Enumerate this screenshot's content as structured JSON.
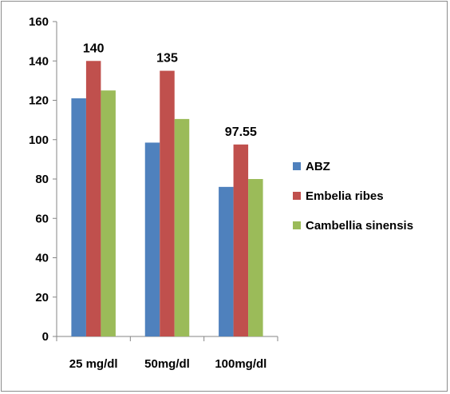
{
  "chart_data": {
    "type": "bar",
    "categories": [
      "25 mg/dl",
      "50mg/dl",
      "100mg/dl"
    ],
    "series": [
      {
        "name": "ABZ",
        "values": [
          121,
          98.5,
          76
        ],
        "color": "#4f81bd"
      },
      {
        "name": "Embelia ribes",
        "values": [
          140,
          135,
          97.55
        ],
        "color": "#c0504d"
      },
      {
        "name": "Cambellia sinensis",
        "values": [
          125,
          110.5,
          80
        ],
        "color": "#9bbb59"
      }
    ],
    "data_labels": [
      {
        "category": 0,
        "series": 1,
        "text": "140"
      },
      {
        "category": 1,
        "series": 1,
        "text": "135"
      },
      {
        "category": 2,
        "series": 1,
        "text": "97.55"
      }
    ],
    "y_ticks": [
      "0",
      "20",
      "40",
      "60",
      "80",
      "100",
      "120",
      "140",
      "160"
    ],
    "ylim": [
      0,
      160
    ],
    "grid": false,
    "legend_position": "right",
    "title": "",
    "xlabel": "",
    "ylabel": ""
  }
}
